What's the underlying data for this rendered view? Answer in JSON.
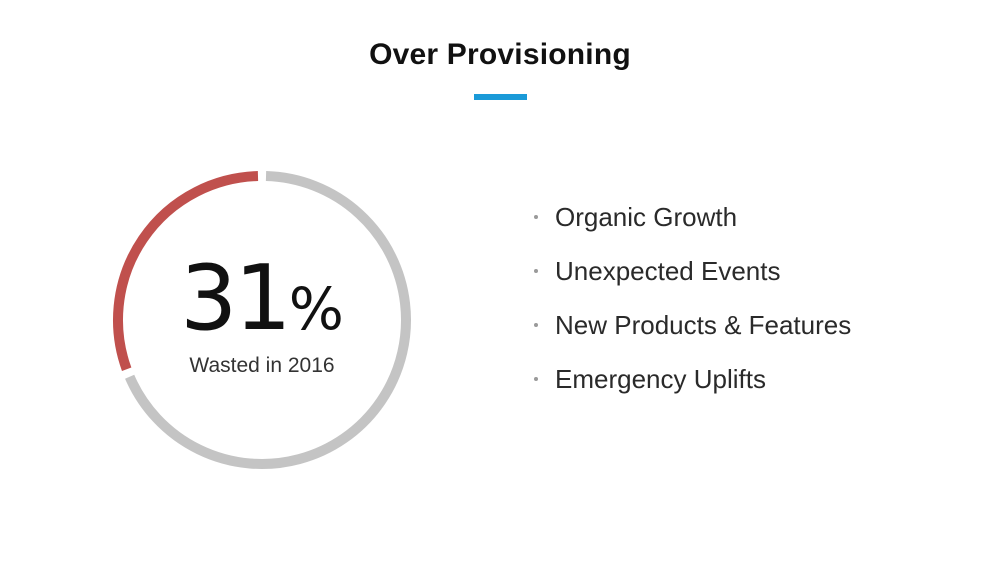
{
  "title": "Over Provisioning",
  "colors": {
    "accent": "#1a9ad8",
    "ring_track": "#c4c4c4",
    "ring_value": "#c0504d",
    "text": "#222222"
  },
  "stat": {
    "value": "31",
    "unit": "%",
    "fraction": 0.31,
    "caption": "Wasted in 2016"
  },
  "bullets": [
    "Organic Growth",
    "Unexpected Events",
    "New Products & Features",
    "Emergency Uplifts"
  ]
}
